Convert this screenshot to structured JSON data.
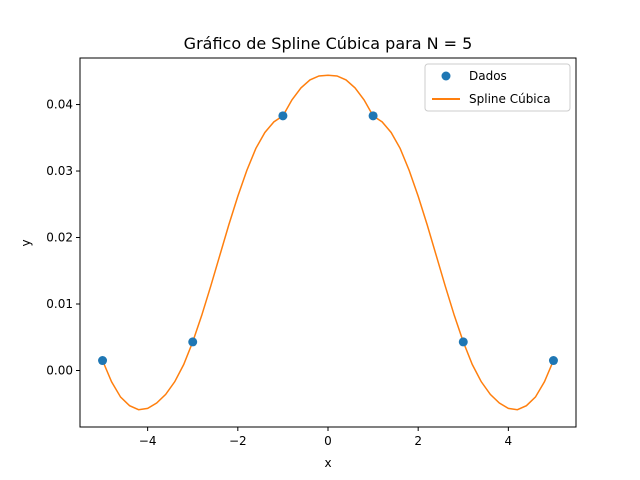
{
  "chart_data": {
    "type": "line",
    "title": "Gráfico de Spline Cúbica para N = 5",
    "xlabel": "x",
    "ylabel": "y",
    "xlim": [
      -5.5,
      5.5
    ],
    "ylim": [
      -0.0085,
      0.047
    ],
    "x_ticks": [
      -4,
      -2,
      0,
      2,
      4
    ],
    "x_tick_labels": [
      "−4",
      "−2",
      "0",
      "2",
      "4"
    ],
    "y_ticks": [
      0.0,
      0.01,
      0.02,
      0.03,
      0.04
    ],
    "y_tick_labels": [
      "0.00",
      "0.01",
      "0.02",
      "0.03",
      "0.04"
    ],
    "grid": false,
    "legend_position": "upper right",
    "series": [
      {
        "name": "Dados",
        "kind": "scatter",
        "color": "#1f77b4",
        "points": [
          [
            -5,
            0.0015
          ],
          [
            -3,
            0.0043
          ],
          [
            -1,
            0.0383
          ],
          [
            1,
            0.0383
          ],
          [
            3,
            0.0043
          ],
          [
            5,
            0.0015
          ]
        ]
      },
      {
        "name": "Spline Cúbica",
        "kind": "line",
        "color": "#ff7f0e",
        "points": [
          [
            -5.0,
            0.0015
          ],
          [
            -4.8,
            -0.0017
          ],
          [
            -4.6,
            -0.004
          ],
          [
            -4.4,
            -0.0053
          ],
          [
            -4.2,
            -0.0059
          ],
          [
            -4.0,
            -0.0057
          ],
          [
            -3.8,
            -0.0049
          ],
          [
            -3.6,
            -0.0036
          ],
          [
            -3.4,
            -0.0017
          ],
          [
            -3.2,
            0.0009
          ],
          [
            -3.0,
            0.0043
          ],
          [
            -2.8,
            0.0083
          ],
          [
            -2.6,
            0.0127
          ],
          [
            -2.4,
            0.0173
          ],
          [
            -2.2,
            0.0219
          ],
          [
            -2.0,
            0.0262
          ],
          [
            -1.8,
            0.0301
          ],
          [
            -1.6,
            0.0334
          ],
          [
            -1.4,
            0.0358
          ],
          [
            -1.2,
            0.0374
          ],
          [
            -1.0,
            0.0383
          ],
          [
            -0.8,
            0.0407
          ],
          [
            -0.6,
            0.0425
          ],
          [
            -0.4,
            0.0437
          ],
          [
            -0.2,
            0.0443
          ],
          [
            0.0,
            0.0444
          ],
          [
            0.2,
            0.0443
          ],
          [
            0.4,
            0.0437
          ],
          [
            0.6,
            0.0425
          ],
          [
            0.8,
            0.0407
          ],
          [
            1.0,
            0.0383
          ],
          [
            1.2,
            0.0374
          ],
          [
            1.4,
            0.0358
          ],
          [
            1.6,
            0.0334
          ],
          [
            1.8,
            0.0301
          ],
          [
            2.0,
            0.0262
          ],
          [
            2.2,
            0.0219
          ],
          [
            2.4,
            0.0173
          ],
          [
            2.6,
            0.0127
          ],
          [
            2.8,
            0.0083
          ],
          [
            3.0,
            0.0043
          ],
          [
            3.2,
            0.0009
          ],
          [
            3.4,
            -0.0017
          ],
          [
            3.6,
            -0.0036
          ],
          [
            3.8,
            -0.0049
          ],
          [
            4.0,
            -0.0057
          ],
          [
            4.2,
            -0.0059
          ],
          [
            4.4,
            -0.0053
          ],
          [
            4.6,
            -0.004
          ],
          [
            4.8,
            -0.0017
          ],
          [
            5.0,
            0.0015
          ]
        ]
      }
    ]
  }
}
